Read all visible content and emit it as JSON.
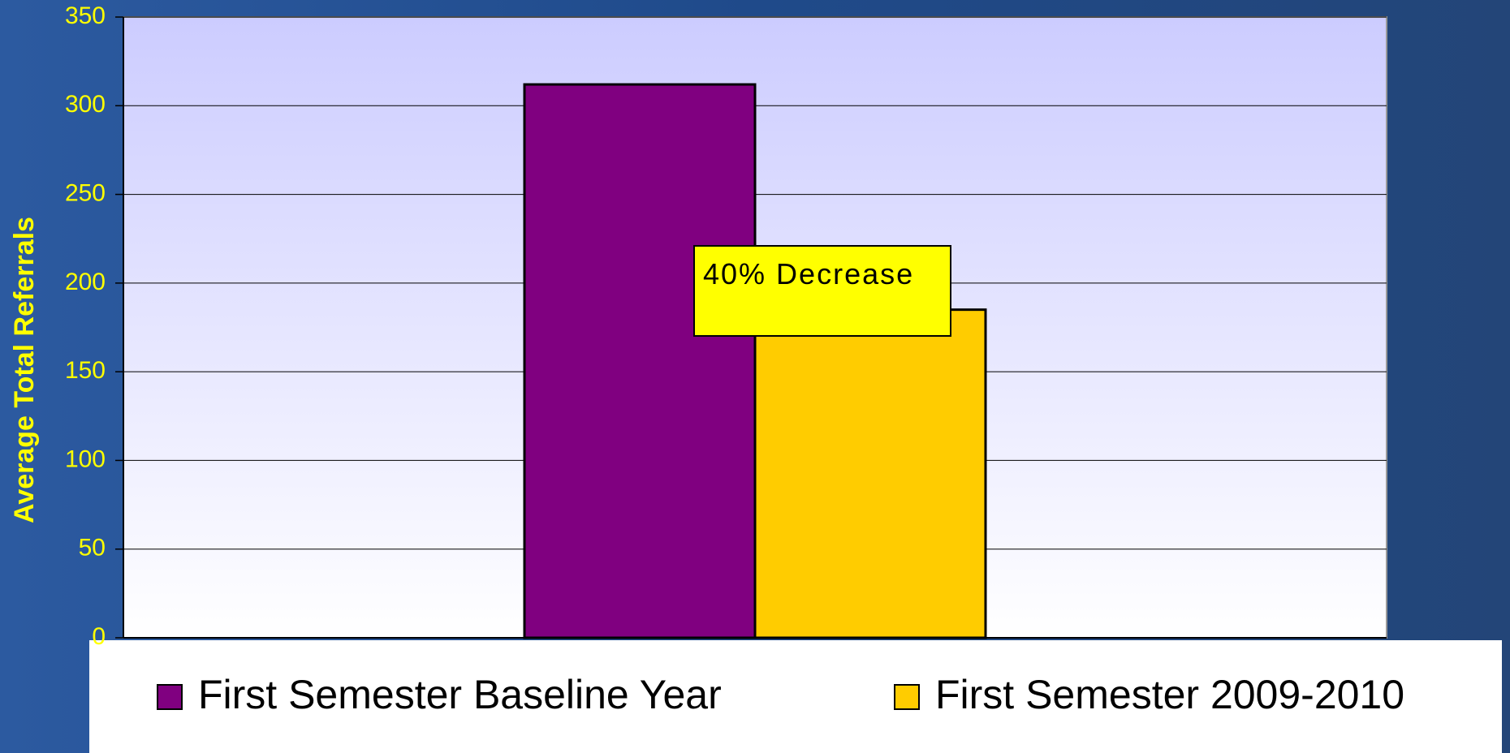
{
  "chart_data": {
    "type": "bar",
    "y_label": "Average Total Referrals",
    "annotation": "40% Decrease",
    "categories": [
      null
    ],
    "series": [
      {
        "name": "First Semester Baseline Year",
        "color": "#800080",
        "values": [
          312
        ]
      },
      {
        "name": "First Semester 2009-2010",
        "color": "#ffcc00",
        "values": [
          185
        ]
      }
    ],
    "ylim": [
      0,
      350
    ],
    "yticks": [
      0,
      50,
      100,
      150,
      200,
      250,
      300,
      350
    ],
    "grid": true,
    "legend": "bottom"
  }
}
